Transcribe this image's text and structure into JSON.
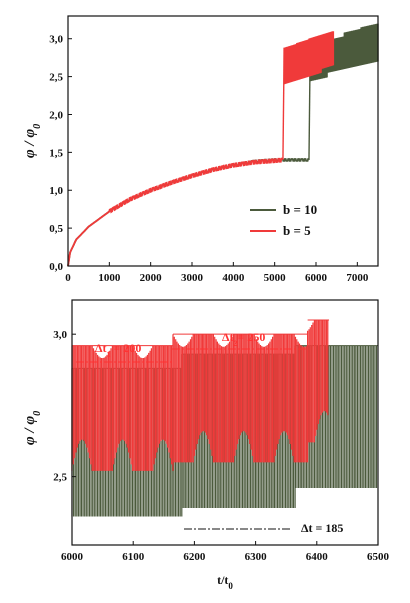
{
  "colors": {
    "b10": "#4b5a3c",
    "b5": "#f03a3a",
    "axis": "#111111"
  },
  "chart_data": [
    {
      "type": "line",
      "xlabel": "",
      "ylabel": "φ / φ0",
      "xlim": [
        0,
        7500
      ],
      "ylim": [
        0,
        3.3
      ],
      "x_ticks": [
        0,
        1000,
        2000,
        3000,
        4000,
        5000,
        6000,
        7000
      ],
      "x_tick_labels": [
        "0",
        "1000",
        "2000",
        "3000",
        "4000",
        "5000",
        "6000",
        "7000"
      ],
      "y_ticks": [
        0,
        0.5,
        1.0,
        1.5,
        2.0,
        2.5,
        3.0
      ],
      "y_tick_labels": [
        "0,0",
        "0,5",
        "1,0",
        "1,5",
        "2,0",
        "2,5",
        "3,0"
      ],
      "legend_position": "lower-right",
      "series": [
        {
          "name": "b = 10",
          "color": "#4b5a3c",
          "x": [
            0,
            50,
            200,
            500,
            1000,
            1500,
            2000,
            2500,
            3000,
            3500,
            4000,
            4500,
            5000,
            5500,
            5830,
            5860,
            6200,
            6600,
            7000,
            7500
          ],
          "y": [
            0,
            0.18,
            0.35,
            0.52,
            0.72,
            0.88,
            1.0,
            1.1,
            1.19,
            1.27,
            1.33,
            1.38,
            1.4,
            1.4,
            1.4,
            2.7,
            2.75,
            2.85,
            2.95,
            3.05
          ],
          "band_low": [
            2.44,
            2.55,
            2.6,
            2.65
          ],
          "band_high": [
            2.9,
            2.98,
            3.08,
            3.15
          ]
        },
        {
          "name": "b = 5",
          "color": "#f03a3a",
          "x": [
            0,
            50,
            200,
            500,
            1000,
            1500,
            2000,
            2500,
            3000,
            3500,
            4000,
            4500,
            5000,
            5200,
            5230,
            5600,
            6000,
            6420
          ],
          "y": [
            0,
            0.18,
            0.35,
            0.52,
            0.72,
            0.88,
            1.0,
            1.1,
            1.19,
            1.27,
            1.33,
            1.37,
            1.39,
            1.4,
            2.65,
            2.7,
            2.75,
            2.8
          ],
          "band_low": [
            2.4,
            2.45,
            2.5,
            2.6
          ],
          "band_high": [
            2.88,
            2.94,
            3.0,
            3.05
          ]
        }
      ]
    },
    {
      "type": "line",
      "xlabel": "t/t0",
      "ylabel": "φ / φ0",
      "xlim": [
        6000,
        6500
      ],
      "ylim": [
        2.26,
        3.12
      ],
      "x_ticks": [
        6000,
        6100,
        6200,
        6300,
        6400,
        6500
      ],
      "x_tick_labels": [
        "6000",
        "6100",
        "6200",
        "6300",
        "6400",
        "6500"
      ],
      "y_ticks": [
        2.5,
        3.0
      ],
      "y_tick_labels": [
        "2,5",
        "3,0"
      ],
      "annotations": [
        {
          "text": "Δt1 = 200",
          "color": "#ff3333"
        },
        {
          "text": "Δt2 = 250",
          "color": "#ff3333"
        },
        {
          "text": "Δt = 185",
          "color": "#111111"
        }
      ],
      "series": [
        {
          "name": "b = 10",
          "color": "#4b5a3c",
          "segments": [
            {
              "x0": 6000,
              "x1": 6180,
              "low": 2.36,
              "high": 2.88
            },
            {
              "x0": 6180,
              "x1": 6365,
              "low": 2.39,
              "high": 2.93
            },
            {
              "x0": 6365,
              "x1": 6500,
              "low": 2.46,
              "high": 2.96
            }
          ]
        },
        {
          "name": "b = 5",
          "color": "#f03a3a",
          "segments": [
            {
              "x0": 6000,
              "x1": 6165,
              "low": 2.52,
              "high": 2.96
            },
            {
              "x0": 6165,
              "x1": 6385,
              "low": 2.55,
              "high": 3.0
            },
            {
              "x0": 6385,
              "x1": 6420,
              "low": 2.62,
              "high": 3.05
            }
          ]
        }
      ]
    }
  ]
}
